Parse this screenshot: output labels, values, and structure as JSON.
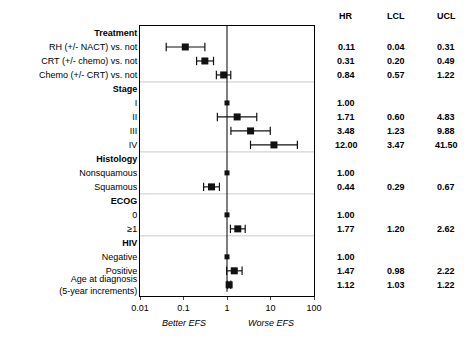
{
  "chart_data": {
    "type": "forest",
    "log": "x",
    "grid": false,
    "xlim": [
      0.01,
      100
    ],
    "xticks": [
      0.01,
      0.1,
      1,
      10,
      100
    ],
    "ref_line": 1,
    "color": "#111111",
    "categories": [
      "Treatment",
      "RH (+/- NACT) vs. not",
      "CRT (+/- chemo) vs. not",
      "Chemo (+/- CRT) vs. not",
      "Stage",
      "I",
      "II",
      "III",
      "IV",
      "Histology",
      "Nonsquamous",
      "Squamous",
      "ECOG",
      "0",
      "≥1",
      "HIV",
      "Negative",
      "Positive",
      "Age at diagnosis\n(5-year increments)"
    ],
    "series": [
      {
        "name": "HR",
        "values": [
          null,
          0.11,
          0.31,
          0.84,
          null,
          1.0,
          1.71,
          3.48,
          12.0,
          null,
          1.0,
          0.44,
          null,
          1.0,
          1.77,
          null,
          1.0,
          1.47,
          1.12
        ],
        "value_labels": [
          null,
          "0.11",
          "0.31",
          "0.84",
          null,
          "1.00",
          "1.71",
          "3.48",
          "12.00",
          null,
          "1.00",
          "0.44",
          null,
          "1.00",
          "1.77",
          null,
          "1.00",
          "1.47",
          "1.12"
        ]
      },
      {
        "name": "LCL",
        "values": [
          null,
          0.04,
          0.2,
          0.57,
          null,
          null,
          0.6,
          1.23,
          3.47,
          null,
          null,
          0.29,
          null,
          null,
          1.2,
          null,
          null,
          0.98,
          1.03
        ],
        "value_labels": [
          null,
          "0.04",
          "0.20",
          "0.57",
          null,
          null,
          "0.60",
          "1.23",
          "3.47",
          null,
          null,
          "0.29",
          null,
          null,
          "1.20",
          null,
          null,
          "0.98",
          "1.03"
        ]
      },
      {
        "name": "UCL",
        "values": [
          null,
          0.31,
          0.49,
          1.22,
          null,
          null,
          4.83,
          9.88,
          41.5,
          null,
          null,
          0.67,
          null,
          null,
          2.62,
          null,
          null,
          2.22,
          1.22
        ],
        "value_labels": [
          null,
          "0.31",
          "0.49",
          "1.22",
          null,
          null,
          "4.83",
          "9.88",
          "41.50",
          null,
          null,
          "0.67",
          null,
          null,
          "2.62",
          null,
          null,
          "2.22",
          "1.22"
        ]
      }
    ],
    "annotations": [
      {
        "text": "Better EFS",
        "x": 0.1
      },
      {
        "text": "Worse EFS",
        "x": 10
      }
    ]
  }
}
